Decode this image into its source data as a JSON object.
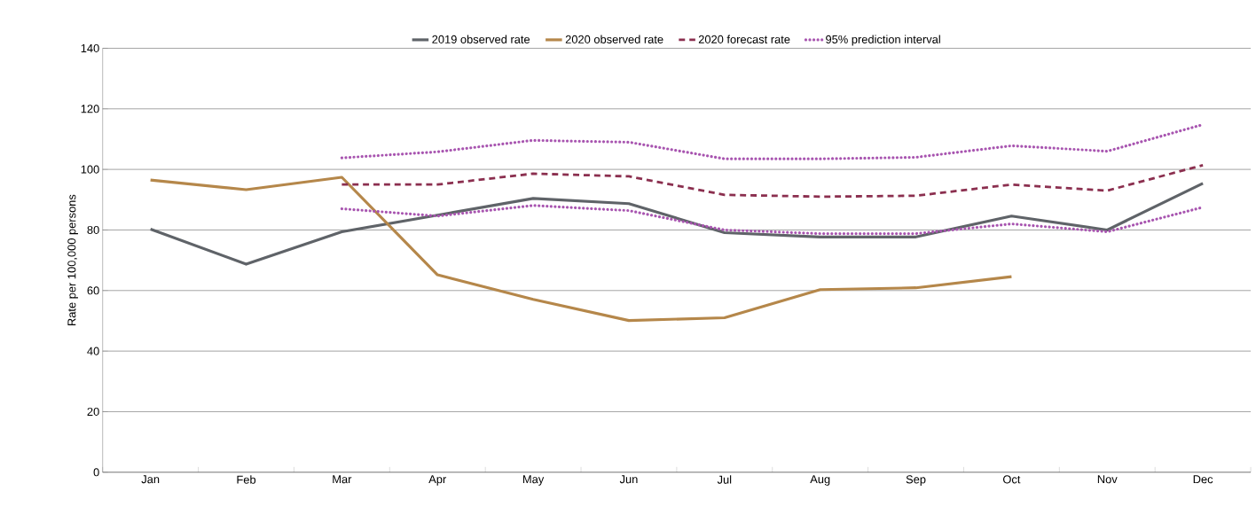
{
  "chart_data": {
    "type": "line",
    "ylabel": "Rate per 100,000 persons",
    "categories": [
      "Jan",
      "Feb",
      "Mar",
      "Apr",
      "May",
      "Jun",
      "Jul",
      "Aug",
      "Sep",
      "Oct",
      "Nov",
      "Dec"
    ],
    "series": [
      {
        "name": "2019 observed rate",
        "color": "#5f6368",
        "line_style": "solid",
        "values": [
          80.3,
          68.7,
          79.4,
          84.9,
          90.4,
          88.7,
          79.1,
          77.7,
          77.7,
          84.6,
          80,
          95.4
        ]
      },
      {
        "name": "2020 observed rate",
        "color": "#b5874a",
        "line_style": "solid",
        "values": [
          96.5,
          93.3,
          97.4,
          65.2,
          57.1,
          50.1,
          51,
          60.3,
          60.9,
          64.6,
          null,
          null
        ]
      },
      {
        "name": "2020 forecast rate",
        "color": "#8b2f4f",
        "line_style": "dashed",
        "values": [
          null,
          null,
          95,
          95,
          98.6,
          97.7,
          91.6,
          91,
          91.3,
          95,
          93,
          101.4
        ]
      },
      {
        "name": "95% prediction interval",
        "color": "#a855b0",
        "line_style": "dotted",
        "values": [
          null,
          null,
          103.8,
          105.8,
          109.6,
          109,
          103.5,
          103.5,
          104,
          107.8,
          106,
          114.8
        ]
      },
      {
        "color": "#a855b0",
        "line_style": "dotted",
        "values": [
          null,
          null,
          87,
          84.6,
          88.1,
          86.4,
          80,
          78.8,
          78.8,
          82,
          79.4,
          87.5
        ]
      }
    ],
    "ylim": [
      0,
      140
    ],
    "yticks": [
      0,
      20,
      40,
      60,
      80,
      100,
      120,
      140
    ],
    "grid": "y",
    "legend": "top",
    "marker": "none"
  }
}
